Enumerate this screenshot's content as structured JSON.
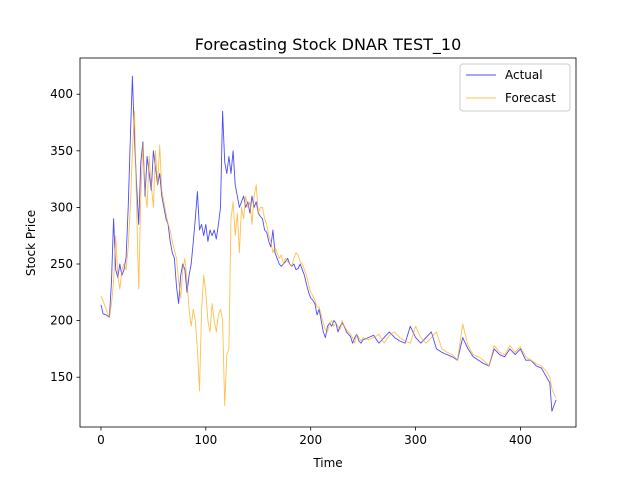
{
  "chart_data": {
    "type": "line",
    "title": "Forecasting Stock DNAR TEST_10",
    "xlabel": "Time",
    "ylabel": "Stock Price",
    "xlim": [
      -20,
      453
    ],
    "ylim": [
      106,
      432
    ],
    "xticks": [
      0,
      100,
      200,
      300,
      400
    ],
    "yticks": [
      150,
      200,
      250,
      300,
      350,
      400
    ],
    "grid": false,
    "legend_position": "top-right",
    "series": [
      {
        "name": "Actual",
        "color": "#0000ff",
        "points": [
          [
            0,
            214
          ],
          [
            2,
            206
          ],
          [
            5,
            205
          ],
          [
            8,
            203
          ],
          [
            10,
            235
          ],
          [
            12,
            290
          ],
          [
            14,
            245
          ],
          [
            16,
            238
          ],
          [
            18,
            250
          ],
          [
            20,
            240
          ],
          [
            22,
            245
          ],
          [
            24,
            256
          ],
          [
            26,
            300
          ],
          [
            28,
            360
          ],
          [
            30,
            416
          ],
          [
            32,
            360
          ],
          [
            34,
            320
          ],
          [
            36,
            285
          ],
          [
            38,
            340
          ],
          [
            40,
            358
          ],
          [
            42,
            310
          ],
          [
            44,
            345
          ],
          [
            46,
            330
          ],
          [
            48,
            315
          ],
          [
            50,
            350
          ],
          [
            52,
            335
          ],
          [
            54,
            320
          ],
          [
            56,
            330
          ],
          [
            58,
            310
          ],
          [
            60,
            300
          ],
          [
            62,
            290
          ],
          [
            64,
            285
          ],
          [
            66,
            270
          ],
          [
            68,
            260
          ],
          [
            70,
            255
          ],
          [
            72,
            230
          ],
          [
            74,
            215
          ],
          [
            76,
            240
          ],
          [
            78,
            250
          ],
          [
            80,
            245
          ],
          [
            82,
            225
          ],
          [
            84,
            240
          ],
          [
            86,
            250
          ],
          [
            88,
            270
          ],
          [
            90,
            290
          ],
          [
            92,
            314
          ],
          [
            94,
            280
          ],
          [
            96,
            285
          ],
          [
            98,
            275
          ],
          [
            100,
            285
          ],
          [
            102,
            270
          ],
          [
            104,
            280
          ],
          [
            106,
            275
          ],
          [
            108,
            280
          ],
          [
            110,
            272
          ],
          [
            112,
            285
          ],
          [
            114,
            300
          ],
          [
            116,
            385
          ],
          [
            118,
            340
          ],
          [
            120,
            330
          ],
          [
            122,
            345
          ],
          [
            124,
            330
          ],
          [
            126,
            350
          ],
          [
            128,
            320
          ],
          [
            130,
            310
          ],
          [
            132,
            300
          ],
          [
            134,
            305
          ],
          [
            136,
            310
          ],
          [
            138,
            300
          ],
          [
            140,
            305
          ],
          [
            142,
            295
          ],
          [
            144,
            310
          ],
          [
            146,
            300
          ],
          [
            148,
            305
          ],
          [
            150,
            295
          ],
          [
            152,
            292
          ],
          [
            154,
            290
          ],
          [
            156,
            280
          ],
          [
            158,
            278
          ],
          [
            160,
            270
          ],
          [
            162,
            265
          ],
          [
            164,
            280
          ],
          [
            166,
            260
          ],
          [
            168,
            255
          ],
          [
            170,
            250
          ],
          [
            172,
            248
          ],
          [
            174,
            250
          ],
          [
            176,
            252
          ],
          [
            178,
            255
          ],
          [
            180,
            250
          ],
          [
            182,
            248
          ],
          [
            184,
            250
          ],
          [
            186,
            245
          ],
          [
            188,
            246
          ],
          [
            190,
            250
          ],
          [
            192,
            245
          ],
          [
            194,
            240
          ],
          [
            196,
            232
          ],
          [
            198,
            225
          ],
          [
            200,
            220
          ],
          [
            202,
            218
          ],
          [
            204,
            215
          ],
          [
            206,
            205
          ],
          [
            208,
            210
          ],
          [
            210,
            200
          ],
          [
            212,
            190
          ],
          [
            214,
            185
          ],
          [
            216,
            195
          ],
          [
            218,
            198
          ],
          [
            220,
            195
          ],
          [
            222,
            200
          ],
          [
            224,
            198
          ],
          [
            226,
            190
          ],
          [
            228,
            195
          ],
          [
            230,
            198
          ],
          [
            232,
            195
          ],
          [
            234,
            190
          ],
          [
            236,
            188
          ],
          [
            238,
            186
          ],
          [
            240,
            180
          ],
          [
            242,
            185
          ],
          [
            244,
            188
          ],
          [
            246,
            182
          ],
          [
            248,
            180
          ],
          [
            250,
            183
          ],
          [
            255,
            185
          ],
          [
            260,
            187
          ],
          [
            265,
            180
          ],
          [
            270,
            185
          ],
          [
            275,
            190
          ],
          [
            280,
            185
          ],
          [
            285,
            182
          ],
          [
            290,
            180
          ],
          [
            295,
            195
          ],
          [
            300,
            185
          ],
          [
            305,
            180
          ],
          [
            310,
            185
          ],
          [
            315,
            190
          ],
          [
            320,
            175
          ],
          [
            325,
            172
          ],
          [
            330,
            170
          ],
          [
            335,
            168
          ],
          [
            340,
            165
          ],
          [
            345,
            185
          ],
          [
            350,
            175
          ],
          [
            355,
            168
          ],
          [
            360,
            165
          ],
          [
            365,
            162
          ],
          [
            370,
            160
          ],
          [
            375,
            175
          ],
          [
            380,
            170
          ],
          [
            385,
            168
          ],
          [
            390,
            175
          ],
          [
            395,
            170
          ],
          [
            400,
            175
          ],
          [
            405,
            165
          ],
          [
            410,
            165
          ],
          [
            415,
            160
          ],
          [
            420,
            158
          ],
          [
            425,
            150
          ],
          [
            428,
            145
          ],
          [
            430,
            120
          ],
          [
            432,
            125
          ],
          [
            434,
            130
          ]
        ]
      },
      {
        "name": "Forecast",
        "color": "#ffa500",
        "points": [
          [
            0,
            222
          ],
          [
            3,
            215
          ],
          [
            6,
            207
          ],
          [
            8,
            203
          ],
          [
            10,
            215
          ],
          [
            12,
            235
          ],
          [
            14,
            275
          ],
          [
            16,
            240
          ],
          [
            18,
            228
          ],
          [
            20,
            245
          ],
          [
            22,
            250
          ],
          [
            24,
            245
          ],
          [
            26,
            265
          ],
          [
            28,
            300
          ],
          [
            30,
            350
          ],
          [
            32,
            385
          ],
          [
            34,
            300
          ],
          [
            36,
            228
          ],
          [
            38,
            310
          ],
          [
            40,
            355
          ],
          [
            42,
            315
          ],
          [
            44,
            300
          ],
          [
            46,
            345
          ],
          [
            48,
            320
          ],
          [
            50,
            300
          ],
          [
            52,
            350
          ],
          [
            54,
            320
          ],
          [
            56,
            355
          ],
          [
            58,
            315
          ],
          [
            60,
            305
          ],
          [
            62,
            295
          ],
          [
            64,
            285
          ],
          [
            66,
            280
          ],
          [
            68,
            270
          ],
          [
            70,
            262
          ],
          [
            72,
            255
          ],
          [
            74,
            235
          ],
          [
            76,
            220
          ],
          [
            78,
            245
          ],
          [
            80,
            255
          ],
          [
            82,
            235
          ],
          [
            84,
            210
          ],
          [
            86,
            195
          ],
          [
            88,
            210
          ],
          [
            90,
            200
          ],
          [
            92,
            175
          ],
          [
            94,
            138
          ],
          [
            96,
            210
          ],
          [
            98,
            240
          ],
          [
            100,
            225
          ],
          [
            102,
            200
          ],
          [
            104,
            190
          ],
          [
            106,
            215
          ],
          [
            108,
            200
          ],
          [
            110,
            190
          ],
          [
            112,
            205
          ],
          [
            114,
            210
          ],
          [
            116,
            200
          ],
          [
            118,
            125
          ],
          [
            120,
            170
          ],
          [
            122,
            175
          ],
          [
            124,
            290
          ],
          [
            126,
            305
          ],
          [
            128,
            275
          ],
          [
            130,
            295
          ],
          [
            132,
            260
          ],
          [
            134,
            300
          ],
          [
            136,
            290
          ],
          [
            138,
            310
          ],
          [
            140,
            300
          ],
          [
            142,
            305
          ],
          [
            144,
            285
          ],
          [
            146,
            310
          ],
          [
            148,
            320
          ],
          [
            150,
            295
          ],
          [
            152,
            300
          ],
          [
            154,
            300
          ],
          [
            156,
            290
          ],
          [
            158,
            285
          ],
          [
            160,
            275
          ],
          [
            162,
            270
          ],
          [
            164,
            260
          ],
          [
            166,
            265
          ],
          [
            168,
            260
          ],
          [
            170,
            255
          ],
          [
            172,
            258
          ],
          [
            174,
            250
          ],
          [
            176,
            255
          ],
          [
            178,
            252
          ],
          [
            180,
            250
          ],
          [
            182,
            248
          ],
          [
            184,
            255
          ],
          [
            186,
            260
          ],
          [
            188,
            258
          ],
          [
            190,
            252
          ],
          [
            192,
            250
          ],
          [
            194,
            245
          ],
          [
            196,
            240
          ],
          [
            198,
            232
          ],
          [
            200,
            225
          ],
          [
            202,
            222
          ],
          [
            204,
            218
          ],
          [
            206,
            212
          ],
          [
            208,
            212
          ],
          [
            210,
            205
          ],
          [
            212,
            198
          ],
          [
            214,
            192
          ],
          [
            216,
            190
          ],
          [
            218,
            198
          ],
          [
            220,
            200
          ],
          [
            222,
            195
          ],
          [
            224,
            198
          ],
          [
            226,
            195
          ],
          [
            228,
            192
          ],
          [
            230,
            200
          ],
          [
            232,
            195
          ],
          [
            234,
            192
          ],
          [
            236,
            190
          ],
          [
            238,
            188
          ],
          [
            240,
            185
          ],
          [
            242,
            180
          ],
          [
            244,
            188
          ],
          [
            246,
            185
          ],
          [
            248,
            182
          ],
          [
            250,
            185
          ],
          [
            255,
            183
          ],
          [
            260,
            185
          ],
          [
            265,
            188
          ],
          [
            270,
            180
          ],
          [
            275,
            187
          ],
          [
            280,
            190
          ],
          [
            285,
            185
          ],
          [
            290,
            182
          ],
          [
            295,
            180
          ],
          [
            300,
            195
          ],
          [
            305,
            185
          ],
          [
            310,
            180
          ],
          [
            315,
            185
          ],
          [
            320,
            190
          ],
          [
            325,
            175
          ],
          [
            330,
            172
          ],
          [
            335,
            170
          ],
          [
            340,
            165
          ],
          [
            345,
            197
          ],
          [
            350,
            178
          ],
          [
            355,
            170
          ],
          [
            360,
            168
          ],
          [
            365,
            165
          ],
          [
            370,
            160
          ],
          [
            375,
            178
          ],
          [
            380,
            172
          ],
          [
            385,
            170
          ],
          [
            390,
            178
          ],
          [
            395,
            172
          ],
          [
            400,
            177
          ],
          [
            405,
            168
          ],
          [
            410,
            165
          ],
          [
            415,
            162
          ],
          [
            420,
            160
          ],
          [
            425,
            155
          ],
          [
            428,
            150
          ],
          [
            430,
            140
          ],
          [
            432,
            135
          ],
          [
            434,
            132
          ]
        ]
      }
    ]
  }
}
